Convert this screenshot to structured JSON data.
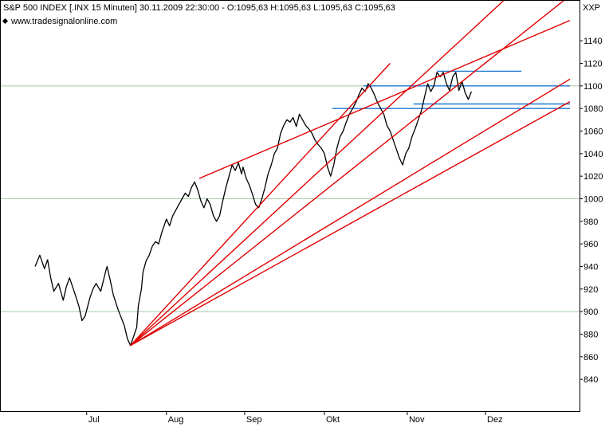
{
  "header": {
    "title": "S&P 500 INDEX [.INX  15 Minuten] 30.11.2009 22:30:00 - O:1095,63 H:1095,63 L:1095,63 C:1095,63",
    "source": "www.tradesignalonline.com",
    "corner_label": "XXP"
  },
  "colors": {
    "price": "#000000",
    "trendline": "#e00000",
    "level": "#1e78d2",
    "grid_major": "#a8c8a8",
    "border": "#000000"
  },
  "chart_data": {
    "type": "line",
    "title": "S&P 500 INDEX [.INX  15 Minuten]",
    "xlabel": "",
    "ylabel": "",
    "ylim": [
      826,
      1162
    ],
    "y_ticks": [
      840,
      860,
      880,
      900,
      920,
      940,
      960,
      980,
      1000,
      1020,
      1040,
      1060,
      1080,
      1100,
      1120,
      1140
    ],
    "x_ticks": [
      "Jul",
      "Aug",
      "Sep",
      "Okt",
      "Nov",
      "Dez"
    ],
    "grid_major_y": [
      900,
      1000,
      1100
    ],
    "series": [
      {
        "values": [
          [
            0,
            940
          ],
          [
            3,
            950
          ],
          [
            6,
            938
          ],
          [
            8,
            946
          ],
          [
            10,
            930
          ],
          [
            12,
            918
          ],
          [
            15,
            925
          ],
          [
            18,
            910
          ],
          [
            20,
            922
          ],
          [
            22,
            930
          ],
          [
            25,
            918
          ],
          [
            28,
            905
          ],
          [
            30,
            892
          ],
          [
            32,
            896
          ],
          [
            35,
            912
          ],
          [
            37,
            920
          ],
          [
            39,
            925
          ],
          [
            42,
            918
          ],
          [
            45,
            935
          ],
          [
            46,
            940
          ],
          [
            48,
            928
          ],
          [
            50,
            915
          ],
          [
            53,
            902
          ],
          [
            55,
            895
          ],
          [
            57,
            888
          ],
          [
            59,
            876
          ],
          [
            61,
            870
          ],
          [
            63,
            878
          ],
          [
            65,
            886
          ],
          [
            66,
            905
          ],
          [
            68,
            920
          ],
          [
            69,
            935
          ],
          [
            71,
            945
          ],
          [
            73,
            950
          ],
          [
            75,
            958
          ],
          [
            77,
            962
          ],
          [
            79,
            960
          ],
          [
            81,
            970
          ],
          [
            83,
            978
          ],
          [
            84,
            982
          ],
          [
            86,
            976
          ],
          [
            88,
            985
          ],
          [
            90,
            990
          ],
          [
            92,
            995
          ],
          [
            94,
            1000
          ],
          [
            96,
            1005
          ],
          [
            98,
            1002
          ],
          [
            100,
            1010
          ],
          [
            102,
            1015
          ],
          [
            104,
            1008
          ],
          [
            106,
            998
          ],
          [
            108,
            992
          ],
          [
            110,
            1000
          ],
          [
            112,
            995
          ],
          [
            114,
            985
          ],
          [
            116,
            980
          ],
          [
            118,
            985
          ],
          [
            120,
            998
          ],
          [
            122,
            1010
          ],
          [
            124,
            1020
          ],
          [
            126,
            1030
          ],
          [
            128,
            1025
          ],
          [
            130,
            1032
          ],
          [
            132,
            1022
          ],
          [
            133,
            1028
          ],
          [
            135,
            1018
          ],
          [
            137,
            1012
          ],
          [
            139,
            1004
          ],
          [
            141,
            995
          ],
          [
            143,
            992
          ],
          [
            145,
            1000
          ],
          [
            147,
            1010
          ],
          [
            149,
            1022
          ],
          [
            151,
            1030
          ],
          [
            153,
            1040
          ],
          [
            155,
            1045
          ],
          [
            157,
            1058
          ],
          [
            159,
            1065
          ],
          [
            161,
            1070
          ],
          [
            163,
            1068
          ],
          [
            165,
            1072
          ],
          [
            167,
            1064
          ],
          [
            169,
            1075
          ],
          [
            171,
            1070
          ],
          [
            173,
            1065
          ],
          [
            175,
            1062
          ],
          [
            177,
            1058
          ],
          [
            179,
            1052
          ],
          [
            181,
            1048
          ],
          [
            183,
            1045
          ],
          [
            185,
            1040
          ],
          [
            187,
            1028
          ],
          [
            189,
            1020
          ],
          [
            191,
            1030
          ],
          [
            193,
            1045
          ],
          [
            195,
            1055
          ],
          [
            197,
            1060
          ],
          [
            199,
            1068
          ],
          [
            201,
            1075
          ],
          [
            203,
            1080
          ],
          [
            205,
            1085
          ],
          [
            207,
            1092
          ],
          [
            209,
            1098
          ],
          [
            211,
            1095
          ],
          [
            213,
            1102
          ],
          [
            215,
            1098
          ],
          [
            217,
            1092
          ],
          [
            219,
            1085
          ],
          [
            221,
            1080
          ],
          [
            223,
            1075
          ],
          [
            225,
            1065
          ],
          [
            227,
            1060
          ],
          [
            229,
            1052
          ],
          [
            231,
            1044
          ],
          [
            233,
            1036
          ],
          [
            235,
            1030
          ],
          [
            237,
            1040
          ],
          [
            239,
            1045
          ],
          [
            241,
            1055
          ],
          [
            243,
            1062
          ],
          [
            245,
            1070
          ],
          [
            247,
            1078
          ],
          [
            249,
            1090
          ],
          [
            251,
            1102
          ],
          [
            253,
            1095
          ],
          [
            255,
            1100
          ],
          [
            257,
            1112
          ],
          [
            259,
            1108
          ],
          [
            261,
            1112
          ],
          [
            263,
            1102
          ],
          [
            265,
            1096
          ],
          [
            267,
            1108
          ],
          [
            269,
            1112
          ],
          [
            271,
            1096
          ],
          [
            273,
            1104
          ],
          [
            275,
            1094
          ],
          [
            277,
            1088
          ],
          [
            279,
            1095
          ]
        ]
      }
    ],
    "trendlines": [
      {
        "points": [
          [
            61,
            870
          ],
          [
            227,
            1120
          ]
        ]
      },
      {
        "points": [
          [
            61,
            870
          ],
          [
            303,
            1180
          ]
        ]
      },
      {
        "points": [
          [
            61,
            870
          ],
          [
            342,
            1180
          ]
        ]
      },
      {
        "points": [
          [
            61,
            870
          ],
          [
            342,
            1106
          ]
        ]
      },
      {
        "points": [
          [
            61,
            870
          ],
          [
            342,
            1086
          ]
        ]
      },
      {
        "points": [
          [
            105,
            1018
          ],
          [
            342,
            1158
          ]
        ]
      }
    ],
    "levels": [
      {
        "y": 1113,
        "x_start": 257,
        "x_end": 311
      },
      {
        "y": 1100,
        "x_start": 210,
        "x_end": 342
      },
      {
        "y": 1084,
        "x_start": 242,
        "x_end": 342
      },
      {
        "y": 1080,
        "x_start": 190,
        "x_end": 342
      }
    ]
  }
}
